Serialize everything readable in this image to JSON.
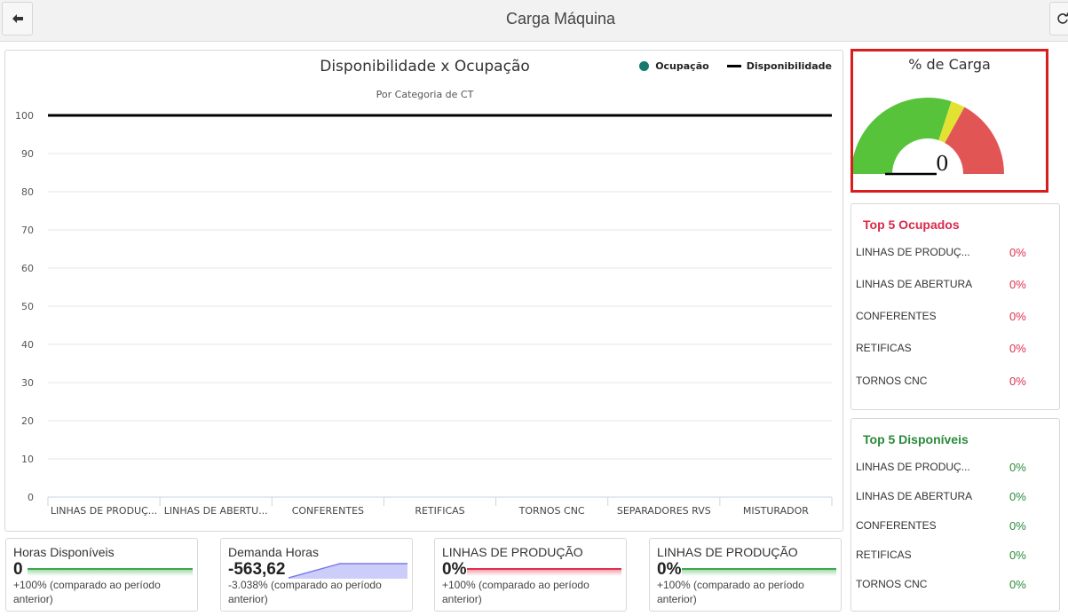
{
  "header": {
    "title": "Carga Máquina",
    "back_icon": "arrow-left-icon",
    "refresh_icon": "refresh-icon"
  },
  "chart": {
    "title": "Disponibilidade x Ocupação",
    "subtitle": "Por Categoria de CT",
    "legend": {
      "ocupacao": "Ocupação",
      "disponibilidade": "Disponibilidade"
    },
    "colors": {
      "ocupacao": "#137a6c",
      "disponibilidade": "#000000"
    }
  },
  "chart_data": {
    "type": "line",
    "title": "Disponibilidade x Ocupação",
    "subtitle": "Por Categoria de CT",
    "categories": [
      "LINHAS DE PRODUÇ...",
      "LINHAS DE ABERTU...",
      "CONFERENTES",
      "RETIFICAS",
      "TORNOS CNC",
      "SEPARADORES RVS",
      "MISTURADOR"
    ],
    "series": [
      {
        "name": "Ocupação",
        "type": "scatter",
        "values": [
          0,
          0,
          0,
          0,
          0,
          0,
          0
        ]
      },
      {
        "name": "Disponibilidade",
        "type": "line",
        "values": [
          100,
          100,
          100,
          100,
          100,
          100,
          100
        ]
      }
    ],
    "ylim": [
      0,
      100
    ],
    "yticks": [
      0,
      10,
      20,
      30,
      40,
      50,
      60,
      70,
      80,
      90,
      100
    ],
    "grid": true,
    "legend": "top-right"
  },
  "gauge": {
    "title": "% de Carga",
    "value": "0",
    "value_num": 0,
    "bands": [
      {
        "from": 0,
        "to": 60,
        "color": "#57c33a"
      },
      {
        "from": 60,
        "to": 66,
        "color": "#e2e232"
      },
      {
        "from": 66,
        "to": 100,
        "color": "#e25555"
      }
    ]
  },
  "top5_ocupados": {
    "title": "Top 5 Ocupados",
    "rows": [
      {
        "label": "LINHAS DE PRODUÇ...",
        "value": "0%"
      },
      {
        "label": "LINHAS DE ABERTURA",
        "value": "0%"
      },
      {
        "label": "CONFERENTES",
        "value": "0%"
      },
      {
        "label": "RETIFICAS",
        "value": "0%"
      },
      {
        "label": "TORNOS CNC",
        "value": "0%"
      }
    ]
  },
  "top5_disponiveis": {
    "title": "Top 5 Disponíveis",
    "rows": [
      {
        "label": "LINHAS DE PRODUÇ...",
        "value": "0%"
      },
      {
        "label": "LINHAS DE ABERTURA",
        "value": "0%"
      },
      {
        "label": "CONFERENTES",
        "value": "0%"
      },
      {
        "label": "RETIFICAS",
        "value": "0%"
      },
      {
        "label": "TORNOS CNC",
        "value": "0%"
      }
    ]
  },
  "kpis": [
    {
      "label": "Horas Disponíveis",
      "value": "0",
      "change": "+100% (comparado ao período anterior)",
      "spark_color": "#3aaa4a",
      "spark": "flat"
    },
    {
      "label": "Demanda Horas",
      "value": "-563,62",
      "change": "-3.038% (comparado ao período anterior)",
      "spark_color": "#7b7bf0",
      "spark": "rising"
    },
    {
      "label": "LINHAS DE PRODUÇÃO",
      "value": "0%",
      "change": "+100% (comparado ao período anterior)",
      "spark_color": "#e0304e",
      "spark": "flat"
    },
    {
      "label": "LINHAS DE PRODUÇÃO",
      "value": "0%",
      "change": "+100% (comparado ao período anterior)",
      "spark_color": "#3aaa4a",
      "spark": "flat"
    }
  ]
}
